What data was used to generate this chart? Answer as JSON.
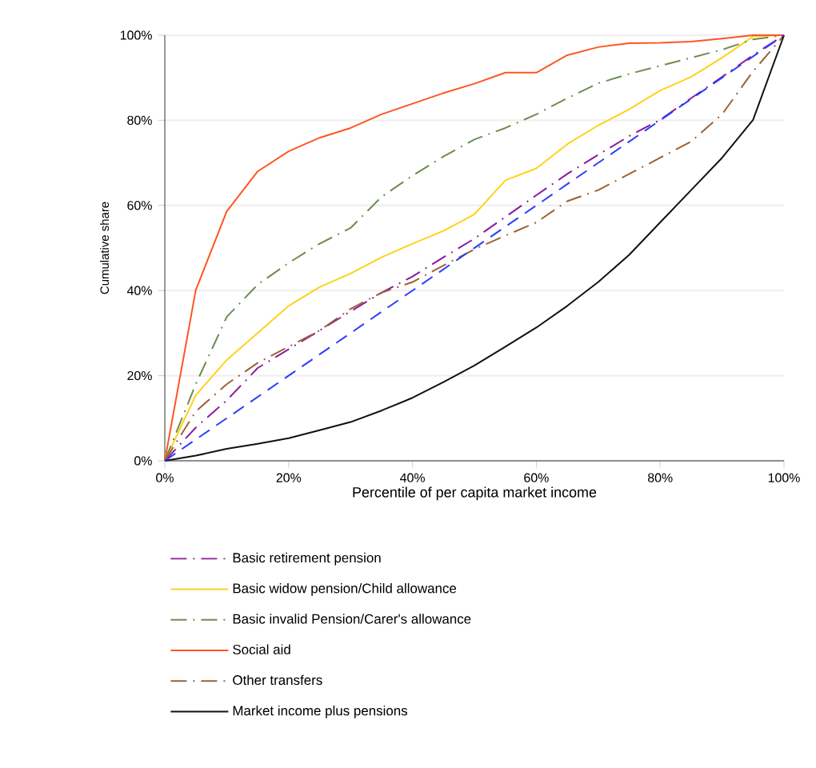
{
  "chart_data": {
    "type": "line",
    "xlabel": "Percentile of per capita market income",
    "ylabel": "Cumulative share",
    "x": [
      0,
      5,
      10,
      15,
      20,
      25,
      30,
      35,
      40,
      45,
      50,
      55,
      60,
      65,
      70,
      75,
      80,
      85,
      90,
      95,
      100
    ],
    "series": [
      {
        "name": "Basic retirement pension",
        "color": "#8b1a9a",
        "line_style": "dashdot",
        "values": [
          0,
          7.8,
          14.2,
          21.8,
          26.2,
          30.6,
          35.1,
          39.5,
          43.3,
          47.8,
          52.2,
          57.3,
          62.4,
          67.4,
          71.9,
          76.3,
          80.1,
          85.2,
          90.2,
          95.3,
          100
        ]
      },
      {
        "name": "Basic widow pension/Child allowance",
        "color": "#ffd21a",
        "line_style": "solid",
        "values": [
          0,
          15.4,
          23.7,
          30,
          36.4,
          40.8,
          44,
          47.8,
          51,
          54,
          57.9,
          65.9,
          68.7,
          74.4,
          78.8,
          82.6,
          87,
          90.2,
          94.7,
          99.7,
          100
        ]
      },
      {
        "name": "Basic invalid Pension/Carer's allowance",
        "color": "#6e8c50",
        "line_style": "dashdot",
        "values": [
          0,
          18,
          33.8,
          41.4,
          46.5,
          51,
          54.7,
          62,
          67,
          71.5,
          75.5,
          78.2,
          81.4,
          85.2,
          88.7,
          90.9,
          92.8,
          94.7,
          96.6,
          99,
          100
        ]
      },
      {
        "name": "Social aid",
        "color": "#ff5522",
        "line_style": "solid",
        "values": [
          0,
          40.1,
          58.6,
          68,
          72.7,
          75.9,
          78.2,
          81.4,
          83.9,
          86.4,
          88.6,
          91.2,
          91.2,
          95.3,
          97.2,
          98.1,
          98.2,
          98.5,
          99.2,
          100,
          100
        ]
      },
      {
        "name": "Other transfers",
        "color": "#9a6233",
        "line_style": "dashdot",
        "values": [
          0,
          11.6,
          18,
          23,
          26.8,
          30.6,
          35.7,
          39.5,
          42,
          45.9,
          49.7,
          52.9,
          56,
          61,
          63.6,
          67.4,
          71.2,
          75,
          81.4,
          91.5,
          100
        ]
      },
      {
        "name": "Market income plus pensions",
        "color": "#111111",
        "line_style": "solid",
        "values": [
          0,
          1.2,
          2.8,
          4,
          5.3,
          7.2,
          9.1,
          11.8,
          14.8,
          18.5,
          22.4,
          26.8,
          31.3,
          36.4,
          42,
          48.4,
          56,
          63.6,
          71.2,
          80.1,
          100
        ]
      },
      {
        "color": "#2a3cff",
        "line_style": "dashed",
        "x": [
          0,
          100
        ],
        "values": [
          0,
          100
        ]
      }
    ],
    "xlim": [
      0,
      100
    ],
    "ylim": [
      0,
      100
    ],
    "xticks": [
      {
        "value": 0,
        "label": "0%"
      },
      {
        "value": 20,
        "label": "20%"
      },
      {
        "value": 40,
        "label": "40%"
      },
      {
        "value": 60,
        "label": "60%"
      },
      {
        "value": 80,
        "label": "80%"
      },
      {
        "value": 100,
        "label": "100%"
      }
    ],
    "yticks": [
      {
        "value": 0,
        "label": "0%"
      },
      {
        "value": 20,
        "label": "20%"
      },
      {
        "value": 40,
        "label": "40%"
      },
      {
        "value": 60,
        "label": "60%"
      },
      {
        "value": 80,
        "label": "80%"
      },
      {
        "value": 100,
        "label": "100%"
      }
    ],
    "grid": "y",
    "legend": "bottom"
  }
}
